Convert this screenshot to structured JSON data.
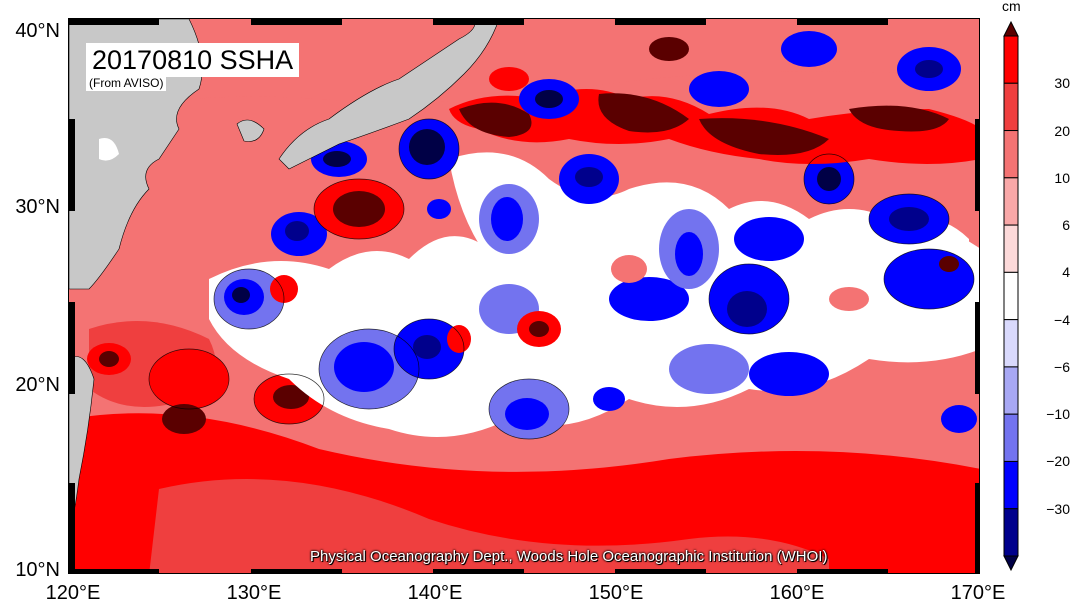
{
  "title": "20170810 SSHA",
  "subtitle": "(From AVISO)",
  "credit": "Physical Oceanography Dept., Woods Hole Oceanographic Institution (WHOI)",
  "lat_labels": [
    "40°N",
    "30°N",
    "20°N",
    "10°N"
  ],
  "lon_labels": [
    "120°E",
    "130°E",
    "140°E",
    "150°E",
    "160°E",
    "170°E"
  ],
  "lat_values": [
    40,
    30,
    20,
    10
  ],
  "lon_values": [
    120,
    130,
    140,
    150,
    160,
    170
  ],
  "map_extent": {
    "lon": [
      120,
      170
    ],
    "lat": [
      10,
      40
    ]
  },
  "colorbar": {
    "unit": "cm",
    "tick_labels": [
      "30",
      "20",
      "10",
      "6",
      "4",
      "−4",
      "−6",
      "−10",
      "−20",
      "−30"
    ],
    "tick_values": [
      30,
      20,
      10,
      6,
      4,
      -4,
      -6,
      -10,
      -20,
      -30
    ],
    "colors_top_to_bottom": [
      "#5a0000",
      "#ff0000",
      "#ef3f3f",
      "#f47373",
      "#f9a8a8",
      "#fcd9d9",
      "#ffffff",
      "#d9d9fc",
      "#a8a8f4",
      "#7373ef",
      "#0000ff",
      "#00008c",
      "#000046"
    ]
  },
  "colors": {
    "land": "#c8c8c8",
    "ocean_base": "#f47373",
    "positive_strong": "#ff0000",
    "positive_extreme": "#5a0000",
    "negative": "#0000ff",
    "negative_extreme": "#000046"
  }
}
